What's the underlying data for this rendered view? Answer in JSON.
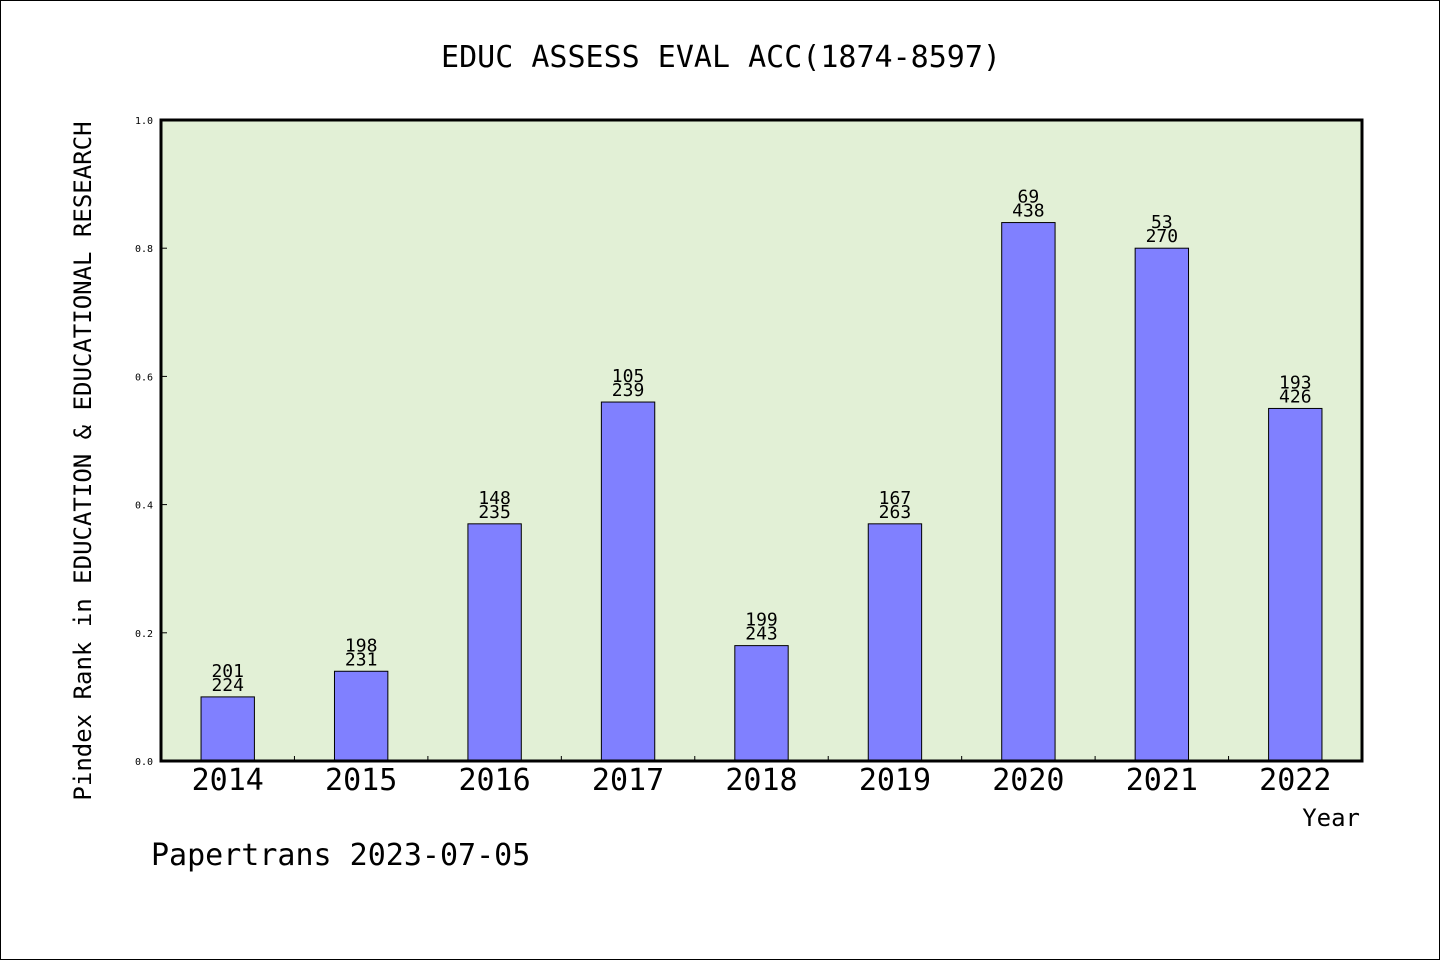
{
  "chart_data": {
    "type": "bar",
    "title": "EDUC ASSESS EVAL ACC(1874-8597)",
    "ylabel": "Pindex Rank in EDUCATION & EDUCATIONAL RESEARCH",
    "xlabel": "Year",
    "ylim": [
      0,
      1.0
    ],
    "yticks": [
      "0.0",
      "0.2",
      "0.4",
      "0.6",
      "0.8",
      "1.0"
    ],
    "categories": [
      "2014",
      "2015",
      "2016",
      "2017",
      "2018",
      "2019",
      "2020",
      "2021",
      "2022"
    ],
    "values": [
      0.1,
      0.14,
      0.37,
      0.56,
      0.18,
      0.37,
      0.84,
      0.8,
      0.55
    ],
    "rank_labels": [
      "201",
      "198",
      "148",
      "105",
      "199",
      "167",
      "69",
      "53",
      "193"
    ],
    "total_labels": [
      "224",
      "231",
      "235",
      "239",
      "243",
      "263",
      "438",
      "270",
      "426"
    ],
    "grid": false,
    "colors": {
      "plot_background": "#e2f0d6",
      "bar_fill": "#8080ff",
      "bar_stroke": "#000000",
      "axis": "#000000"
    }
  },
  "footer": {
    "text": "Papertrans 2023-07-05"
  }
}
